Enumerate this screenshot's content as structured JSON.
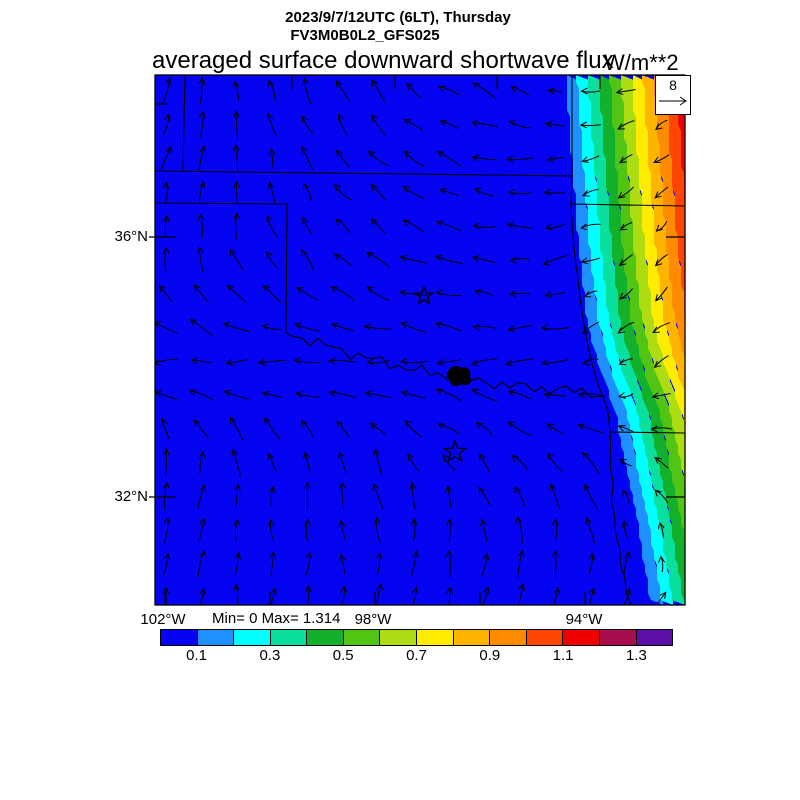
{
  "header": {
    "datetime": "2023/9/7/12UTC (6LT), Thursday",
    "model": "FV3M0B0L2_GFS025",
    "title": "averaged surface downward shortwave flux",
    "units": "W/m**2"
  },
  "axes": {
    "lat_ticks": [
      {
        "label": "36°N"
      },
      {
        "label": "32°N"
      }
    ],
    "lon_ticks": [
      {
        "label": "102°W"
      },
      {
        "label": "98°W"
      },
      {
        "label": "94°W"
      }
    ]
  },
  "stats_text": "Min= 0 Max= 1.314",
  "reference_vector": {
    "value": "8"
  },
  "colorbar": {
    "labels": [
      "0.1",
      "0.3",
      "0.5",
      "0.7",
      "0.9",
      "1.1",
      "1.3"
    ],
    "colors": [
      "#0404F2",
      "#1E90FF",
      "#00FFFF",
      "#0ADF9E",
      "#13B02B",
      "#52C414",
      "#AEDC12",
      "#FFEC00",
      "#FFB400",
      "#FF8C00",
      "#FF4600",
      "#EE0000",
      "#A80D4E",
      "#5C10A8"
    ]
  },
  "map": {
    "background_color": "#0404F2",
    "markers": [
      {
        "symbol": "star",
        "x": 424,
        "y": 296
      },
      {
        "symbol": "star",
        "x": 455,
        "y": 452
      }
    ]
  },
  "chart_data": {
    "type": "heatmap",
    "title": "averaged surface downward shortwave flux",
    "units": "W/m**2",
    "run_info": "2023/9/7/12UTC (6LT), Thursday",
    "model": "FV3M0B0L2_GFS025",
    "x_ticks": [
      "102°W",
      "98°W",
      "94°W"
    ],
    "y_ticks": [
      "36°N",
      "32°N"
    ],
    "value_min": 0,
    "value_max": 1.314,
    "contour_levels": [
      0.1,
      0.2,
      0.3,
      0.4,
      0.5,
      0.6,
      0.7,
      0.8,
      0.9,
      1.0,
      1.1,
      1.2,
      1.3
    ],
    "palette": [
      "#0404F2",
      "#1E90FF",
      "#00FFFF",
      "#0ADF9E",
      "#13B02B",
      "#52C414",
      "#AEDC12",
      "#FFEC00",
      "#FFB400",
      "#FF8C00",
      "#FF4600",
      "#EE0000",
      "#A80D4E",
      "#5C10A8"
    ],
    "field_summary": "Flux is ~0 W/m**2 (deep blue) over nearly the whole Texas–Oklahoma domain; a narrow diagonal rainbow gradient band in the far northeast corner rises from 0.1 to above 1.3 W/m**2 (sunrise terminator). State borders (OK panhandle, KS/MO/AR lines) and the Red River / Sabine River are drawn, with star markers near Oklahoma City and Dallas.",
    "wind_overlay": {
      "type": "quiver",
      "reference_magnitude": 8,
      "pattern": "northerly/up-valley flow in west and south, easterlies across the mid-domain, northwesterly turning to down-slope southwesterly in the northeast gradient band, southerlies along the bottom"
    },
    "legend_position": "bottom horizontal colorbar",
    "grid": false
  }
}
